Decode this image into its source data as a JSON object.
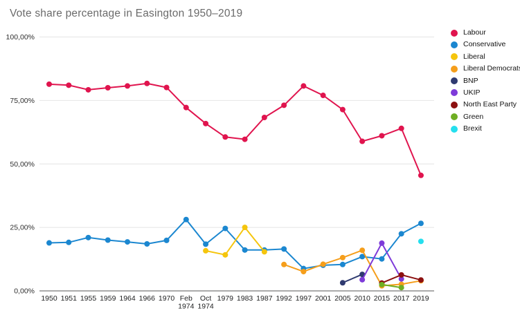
{
  "title": "Vote share percentage in Easington 1950–2019",
  "chart_data": {
    "type": "line",
    "title": "Vote share percentage in Easington 1950–2019",
    "xlabel": "",
    "ylabel": "",
    "ylim": [
      0,
      100
    ],
    "grid": true,
    "legend_position": "right",
    "marker": "circle",
    "yticks": [
      {
        "label": "0,00%",
        "value": 0
      },
      {
        "label": "25,00%",
        "value": 25
      },
      {
        "label": "50,00%",
        "value": 50
      },
      {
        "label": "75,00%",
        "value": 75
      },
      {
        "label": "100,00%",
        "value": 100
      }
    ],
    "categories": [
      "1950",
      "1951",
      "1955",
      "1959",
      "1964",
      "1966",
      "1970",
      "Feb\n1974",
      "Oct\n1974",
      "1979",
      "1983",
      "1987",
      "1992",
      "1997",
      "2001",
      "2005",
      "2010",
      "2015",
      "2017",
      "2019"
    ],
    "series": [
      {
        "name": "Labour",
        "color": "#e0144e",
        "values": [
          81.4,
          81.0,
          79.2,
          80.0,
          80.7,
          81.7,
          80.1,
          72.2,
          65.9,
          60.6,
          59.7,
          68.3,
          73.1,
          80.7,
          77.0,
          71.4,
          58.9,
          61.1,
          64.0,
          45.5
        ]
      },
      {
        "name": "Conservative",
        "color": "#1b87d0",
        "values": [
          18.9,
          19.1,
          21.0,
          20.0,
          19.3,
          18.5,
          19.9,
          28.1,
          18.4,
          24.6,
          16.1,
          16.1,
          16.5,
          8.8,
          10.1,
          10.4,
          13.5,
          12.6,
          22.5,
          26.6
        ]
      },
      {
        "name": "Liberal",
        "color": "#f5c50d",
        "values": [
          null,
          null,
          null,
          null,
          null,
          null,
          null,
          null,
          15.8,
          14.2,
          25.0,
          15.4,
          null,
          null,
          null,
          null,
          null,
          null,
          null,
          null
        ]
      },
      {
        "name": "Liberal Democrats",
        "color": "#f59e1b",
        "values": [
          null,
          null,
          null,
          null,
          null,
          null,
          null,
          null,
          null,
          null,
          null,
          null,
          10.4,
          7.6,
          10.5,
          13.1,
          16.0,
          2.0,
          2.6,
          4.0
        ]
      },
      {
        "name": "BNP",
        "color": "#2f3a70",
        "values": [
          null,
          null,
          null,
          null,
          null,
          null,
          null,
          null,
          null,
          null,
          null,
          null,
          null,
          null,
          null,
          3.2,
          6.5,
          null,
          null,
          null
        ]
      },
      {
        "name": "UKIP",
        "color": "#7e3bd9",
        "values": [
          null,
          null,
          null,
          null,
          null,
          null,
          null,
          null,
          null,
          null,
          null,
          null,
          null,
          null,
          null,
          null,
          4.4,
          18.8,
          4.7,
          null
        ]
      },
      {
        "name": "North East Party",
        "color": "#8c1010",
        "values": [
          null,
          null,
          null,
          null,
          null,
          null,
          null,
          null,
          null,
          null,
          null,
          null,
          null,
          null,
          null,
          null,
          null,
          3.1,
          6.3,
          4.3
        ]
      },
      {
        "name": "Green",
        "color": "#6fae23",
        "values": [
          null,
          null,
          null,
          null,
          null,
          null,
          null,
          null,
          null,
          null,
          null,
          null,
          null,
          null,
          null,
          null,
          null,
          2.5,
          1.3,
          null
        ]
      },
      {
        "name": "Brexit",
        "color": "#25dfee",
        "values": [
          null,
          null,
          null,
          null,
          null,
          null,
          null,
          null,
          null,
          null,
          null,
          null,
          null,
          null,
          null,
          null,
          null,
          null,
          null,
          19.5
        ]
      }
    ]
  }
}
